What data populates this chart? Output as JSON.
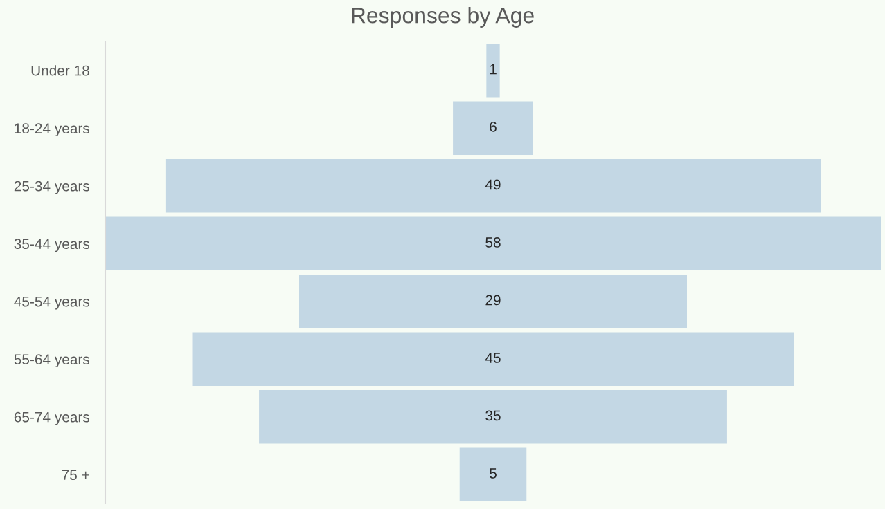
{
  "chart_data": {
    "type": "other",
    "title": "Responses by Age",
    "categories": [
      "Under 18",
      "18-24 years",
      "25-34 years",
      "35-44 years",
      "45-54 years",
      "55-64 years",
      "65-74 years",
      "75 +"
    ],
    "values": [
      1,
      6,
      49,
      58,
      29,
      45,
      35,
      5
    ],
    "color": "#c3d7e4",
    "data_labels": true
  }
}
